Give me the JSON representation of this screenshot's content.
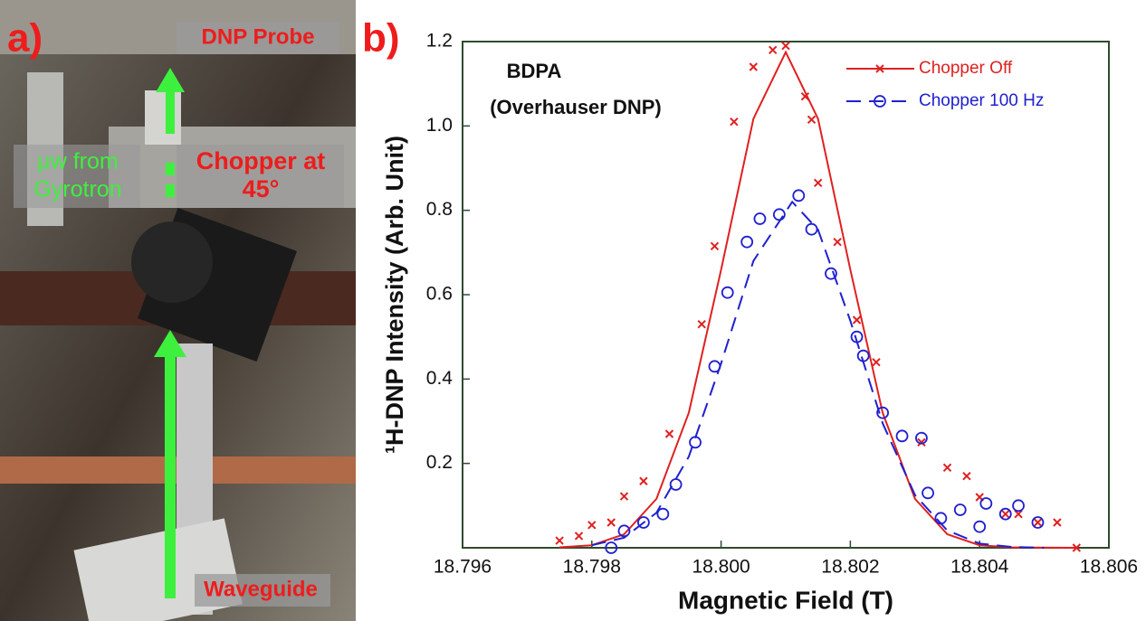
{
  "panel_a": {
    "label": "a)",
    "photo_labels": {
      "probe": "DNP Probe",
      "source_1": "μw from",
      "source_2": "Gyrotron",
      "chopper_1": "Chopper at",
      "chopper_2": "45°",
      "guide": "Waveguide"
    }
  },
  "chart_data": {
    "type": "scatter",
    "panel_label": "b)",
    "annotations": [
      "BDPA",
      "(Overhauser DNP)"
    ],
    "xlabel": "Magnetic Field (T)",
    "ylabel": "¹H-DNP Intensity (Arb. Unit)",
    "xlim": [
      18.796,
      18.806
    ],
    "xticks": [
      18.796,
      18.798,
      {
        "value": 18.8,
        "label": "18.800"
      },
      18.802,
      18.804,
      18.806
    ],
    "ylim": [
      0,
      1.2
    ],
    "yticks": [
      0.2,
      0.4,
      0.6,
      0.8,
      {
        "value": 1,
        "label": "1.0"
      },
      1.2
    ],
    "legend": "upper right",
    "series": [
      {
        "name": "Chopper Off",
        "color": "#e02020",
        "marker": "x",
        "line_style": "solid",
        "x": [
          18.7975,
          18.7978,
          18.798,
          18.7983,
          18.7985,
          18.7988,
          18.7992,
          18.7997,
          18.7999,
          18.8002,
          18.8005,
          18.8008,
          18.801,
          18.8013,
          18.8014,
          18.8015,
          18.8018,
          18.8021,
          18.8024,
          18.8031,
          18.8035,
          18.8038,
          18.804,
          18.8044,
          18.8046,
          18.8049,
          18.8052,
          18.8055
        ],
        "values": [
          0.017,
          0.028,
          0.054,
          0.06,
          0.122,
          0.158,
          0.27,
          0.53,
          0.715,
          1.01,
          1.14,
          1.18,
          1.19,
          1.07,
          1.015,
          0.865,
          0.725,
          0.54,
          0.44,
          0.25,
          0.19,
          0.17,
          0.12,
          0.08,
          0.08,
          0.06,
          0.06,
          0
        ],
        "fit_x": [
          18.7975,
          18.798,
          18.7985,
          18.799,
          18.7995,
          18.8,
          18.8005,
          18.801,
          18.8015,
          18.802,
          18.8025,
          18.803,
          18.8035,
          18.804,
          18.8045,
          18.8055
        ],
        "fit_values": [
          0.001,
          0.006,
          0.032,
          0.116,
          0.32,
          0.659,
          1.017,
          1.175,
          1.017,
          0.659,
          0.32,
          0.116,
          0.032,
          0.006,
          0.001,
          0
        ]
      },
      {
        "name": "Chopper 100 Hz",
        "color": "#2020d0",
        "marker": "circle",
        "line_style": "dashed",
        "x": [
          18.7983,
          18.7985,
          18.7988,
          18.7991,
          18.7993,
          18.7996,
          18.7999,
          18.8001,
          18.8004,
          18.8006,
          18.8009,
          18.8012,
          18.8014,
          18.8017,
          18.8021,
          18.8022,
          18.8025,
          18.8028,
          18.8031,
          18.8032,
          18.8034,
          18.8037,
          18.804,
          18.8041,
          18.8044,
          18.8046,
          18.8049
        ],
        "values": [
          0,
          0.04,
          0.06,
          0.08,
          0.15,
          0.25,
          0.43,
          0.605,
          0.725,
          0.78,
          0.79,
          0.835,
          0.755,
          0.65,
          0.5,
          0.455,
          0.32,
          0.265,
          0.26,
          0.13,
          0.07,
          0.09,
          0.05,
          0.105,
          0.08,
          0.1,
          0.06
        ],
        "fit_x": [
          18.798,
          18.7985,
          18.799,
          18.7995,
          18.8,
          18.8005,
          18.8011,
          18.8015,
          18.802,
          18.8025,
          18.803,
          18.8035,
          18.804,
          18.8045,
          18.805
        ],
        "fit_values": [
          0.006,
          0.024,
          0.083,
          0.216,
          0.437,
          0.68,
          0.82,
          0.754,
          0.538,
          0.295,
          0.125,
          0.041,
          0.01,
          0.002,
          0
        ]
      }
    ]
  }
}
